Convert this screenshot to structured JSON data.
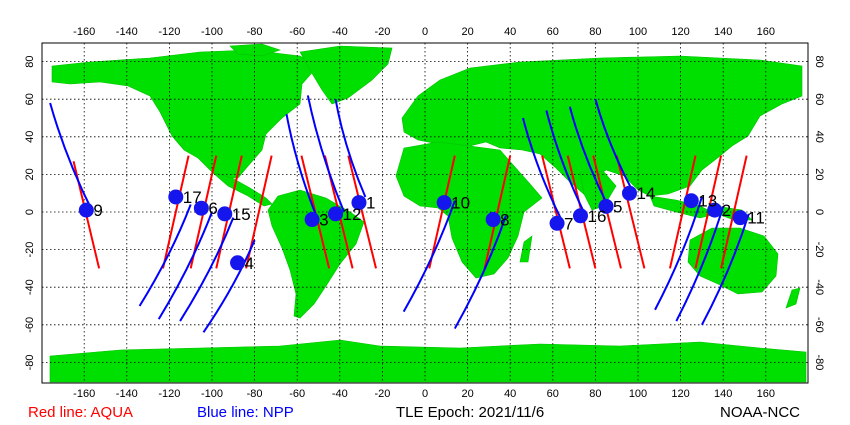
{
  "footer": {
    "aqua": "Red line: AQUA",
    "npp": "Blue line: NPP",
    "epoch": "TLE Epoch: 2021/11/6",
    "credit": "NOAA-NCC"
  },
  "colors": {
    "land": "#00e000",
    "water": "#ffffff",
    "aqua": "#ff0000",
    "npp": "#0000ff",
    "marker": "#1515ee"
  },
  "axes": {
    "lon_ticks": [
      -160,
      -140,
      -120,
      -100,
      -80,
      -60,
      -40,
      -20,
      0,
      20,
      40,
      60,
      80,
      100,
      120,
      140,
      160
    ],
    "lat_ticks": [
      -80,
      -60,
      -40,
      -20,
      0,
      20,
      40,
      60,
      80
    ],
    "lon_range": [
      -180,
      180
    ],
    "lat_range": [
      -90,
      90
    ],
    "grid": "dotted"
  },
  "satellites": [
    {
      "id": "1",
      "lon": -31,
      "lat": 5
    },
    {
      "id": "2",
      "lon": 136,
      "lat": 1
    },
    {
      "id": "3",
      "lon": -53,
      "lat": -4
    },
    {
      "id": "4",
      "lon": -88,
      "lat": -27
    },
    {
      "id": "5",
      "lon": 85,
      "lat": 3
    },
    {
      "id": "6",
      "lon": -105,
      "lat": 2
    },
    {
      "id": "7",
      "lon": 62,
      "lat": -6
    },
    {
      "id": "8",
      "lon": 32,
      "lat": -4
    },
    {
      "id": "9",
      "lon": -159,
      "lat": 1
    },
    {
      "id": "10",
      "lon": 9,
      "lat": 5
    },
    {
      "id": "11",
      "lon": 148,
      "lat": -3
    },
    {
      "id": "12",
      "lon": -42,
      "lat": -1
    },
    {
      "id": "13",
      "lon": 125,
      "lat": 6
    },
    {
      "id": "14",
      "lon": 96,
      "lat": 10
    },
    {
      "id": "15",
      "lon": -94,
      "lat": -1
    },
    {
      "id": "16",
      "lon": 73,
      "lat": -2
    },
    {
      "id": "17",
      "lon": -117,
      "lat": 8
    }
  ],
  "aqua_tracks": [
    {
      "lat_from": -30,
      "lon_from": -153,
      "lat_to": 27,
      "lon_to": -165
    },
    {
      "lat_from": -30,
      "lon_from": -123,
      "lat_to": 30,
      "lon_to": -111
    },
    {
      "lat_from": -30,
      "lon_from": -110,
      "lat_to": 30,
      "lon_to": -98
    },
    {
      "lat_from": -30,
      "lon_from": -98,
      "lat_to": 30,
      "lon_to": -86
    },
    {
      "lat_from": -30,
      "lon_from": -84,
      "lat_to": 30,
      "lon_to": -72
    },
    {
      "lat_from": 30,
      "lon_from": -58,
      "lat_to": -30,
      "lon_to": -45
    },
    {
      "lat_from": 30,
      "lon_from": -47,
      "lat_to": -30,
      "lon_to": -34
    },
    {
      "lat_from": 30,
      "lon_from": -36,
      "lat_to": -30,
      "lon_to": -23
    },
    {
      "lat_from": -30,
      "lon_from": 2,
      "lat_to": 30,
      "lon_to": 14
    },
    {
      "lat_from": -30,
      "lon_from": 28,
      "lat_to": 30,
      "lon_to": 40
    },
    {
      "lat_from": 30,
      "lon_from": 55,
      "lat_to": -30,
      "lon_to": 68
    },
    {
      "lat_from": 30,
      "lon_from": 67,
      "lat_to": -30,
      "lon_to": 80
    },
    {
      "lat_from": 30,
      "lon_from": 79,
      "lat_to": -30,
      "lon_to": 92
    },
    {
      "lat_from": 30,
      "lon_from": 90,
      "lat_to": -30,
      "lon_to": 103
    },
    {
      "lat_from": -30,
      "lon_from": 115,
      "lat_to": 30,
      "lon_to": 127
    },
    {
      "lat_from": -30,
      "lon_from": 127,
      "lat_to": 30,
      "lon_to": 139
    },
    {
      "lat_from": -30,
      "lon_from": 139,
      "lat_to": 30,
      "lon_to": 151
    }
  ],
  "npp_tracks": [
    {
      "lon_top": -176,
      "lat_top": 58,
      "lon_bot": -156,
      "lat_bot": 0
    },
    {
      "lon_top": -110,
      "lat_top": 4,
      "lon_bot": -134,
      "lat_bot": -50
    },
    {
      "lon_top": -100,
      "lat_top": 0,
      "lon_bot": -125,
      "lat_bot": -57
    },
    {
      "lon_top": -90,
      "lat_top": -3,
      "lon_bot": -115,
      "lat_bot": -58
    },
    {
      "lon_top": -80,
      "lat_top": -15,
      "lon_bot": -104,
      "lat_bot": -64
    },
    {
      "lon_top": -65,
      "lat_top": 52,
      "lon_bot": -50,
      "lat_bot": -5
    },
    {
      "lon_top": -55,
      "lat_top": 62,
      "lon_bot": -38,
      "lat_bot": 0
    },
    {
      "lon_top": -42,
      "lat_top": 60,
      "lon_bot": -28,
      "lat_bot": 8
    },
    {
      "lon_top": 14,
      "lat_top": 6,
      "lon_bot": -10,
      "lat_bot": -53
    },
    {
      "lon_top": 38,
      "lat_top": -2,
      "lon_bot": 14,
      "lat_bot": -62
    },
    {
      "lon_top": 46,
      "lat_top": 50,
      "lon_bot": 64,
      "lat_bot": -4
    },
    {
      "lon_top": 57,
      "lat_top": 54,
      "lon_bot": 75,
      "lat_bot": -1
    },
    {
      "lon_top": 68,
      "lat_top": 56,
      "lon_bot": 86,
      "lat_bot": 3
    },
    {
      "lon_top": 80,
      "lat_top": 60,
      "lon_bot": 98,
      "lat_bot": 10
    },
    {
      "lon_top": 130,
      "lat_top": 8,
      "lon_bot": 108,
      "lat_bot": -52
    },
    {
      "lon_top": 140,
      "lat_top": 3,
      "lon_bot": 118,
      "lat_bot": -58
    },
    {
      "lon_top": 152,
      "lat_top": -1,
      "lon_bot": 130,
      "lat_bot": -60
    }
  ]
}
